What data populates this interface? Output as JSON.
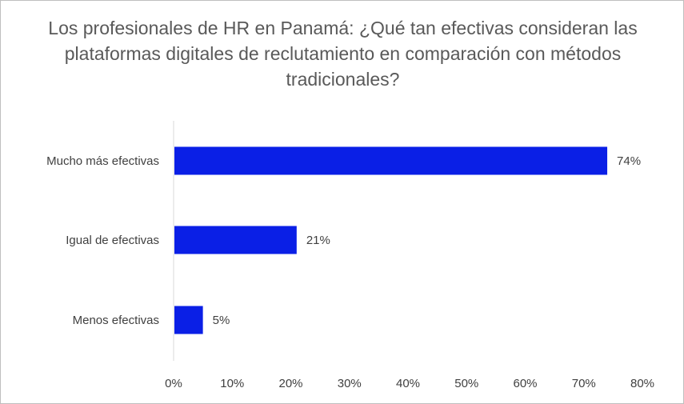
{
  "chart_data": {
    "type": "bar",
    "orientation": "horizontal",
    "title": "Los profesionales de HR en Panamá: ¿Qué tan efectivas consideran las plataformas digitales de reclutamiento en comparación con métodos tradicionales?",
    "categories": [
      "Mucho más efectivas",
      "Igual de efectivas",
      "Menos efectivas"
    ],
    "values": [
      74,
      21,
      5
    ],
    "data_labels": [
      "74%",
      "21%",
      "5%"
    ],
    "xlim": [
      0,
      80
    ],
    "x_ticks": [
      "0%",
      "10%",
      "20%",
      "30%",
      "40%",
      "50%",
      "60%",
      "70%",
      "80%"
    ],
    "xlabel": "",
    "ylabel": "",
    "grid": false,
    "legend": "none",
    "bar_color": "#0a1fe6"
  }
}
